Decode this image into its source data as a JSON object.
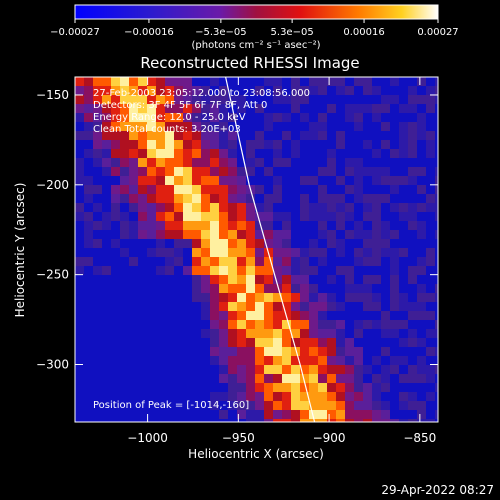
{
  "chart_data": {
    "type": "heatmap",
    "title": "Reconstructed RHESSI Image",
    "xlabel": "Heliocentric X (arcsec)",
    "ylabel": "Heliocentric Y (arcsec)",
    "xlim": [
      -1040,
      -840
    ],
    "ylim": [
      -332,
      -140
    ],
    "x_ticks": [
      -1000,
      -950,
      -900,
      -850
    ],
    "y_ticks": [
      -150,
      -200,
      -250,
      -300
    ],
    "x_tick_labels": [
      "−1000",
      "−950",
      "−900",
      "−850"
    ],
    "y_tick_labels": [
      "−150",
      "−200",
      "−250",
      "−300"
    ],
    "colorbar": {
      "range": [
        -0.00027,
        0.00027
      ],
      "ticks": [
        -0.00027,
        -0.00016,
        -5.3e-05,
        5.3e-05,
        0.00016,
        0.00027
      ],
      "tick_labels": [
        "−0.00027",
        "−0.00016",
        "−5.3e−05",
        "5.3e−05",
        "0.00016",
        "0.00027"
      ],
      "units_label": "(photons cm⁻² s⁻¹ asec⁻²)"
    },
    "annotations": [
      "27-Feb-2003 23:05:12.000 to 23:08:56.000",
      "Detectors: 3F 4F 5F 6F 7F 8F, Att 0",
      "Energy Range: 12.0 - 25.0 keV",
      "Clean    Total counts: 3.20E+03"
    ],
    "peak_label": "Position of Peak = [-1014,-160]",
    "peak_position": [
      -1014,
      -160
    ],
    "limb_curve": [
      [
        -957,
        -140
      ],
      [
        -944,
        -200
      ],
      [
        -930,
        -250
      ],
      [
        -916,
        -300
      ],
      [
        -908,
        -332
      ]
    ]
  },
  "footer": {
    "timestamp": "29-Apr-2022 08:27"
  },
  "colors": {
    "background": "#000000",
    "text": "#ffffff"
  }
}
